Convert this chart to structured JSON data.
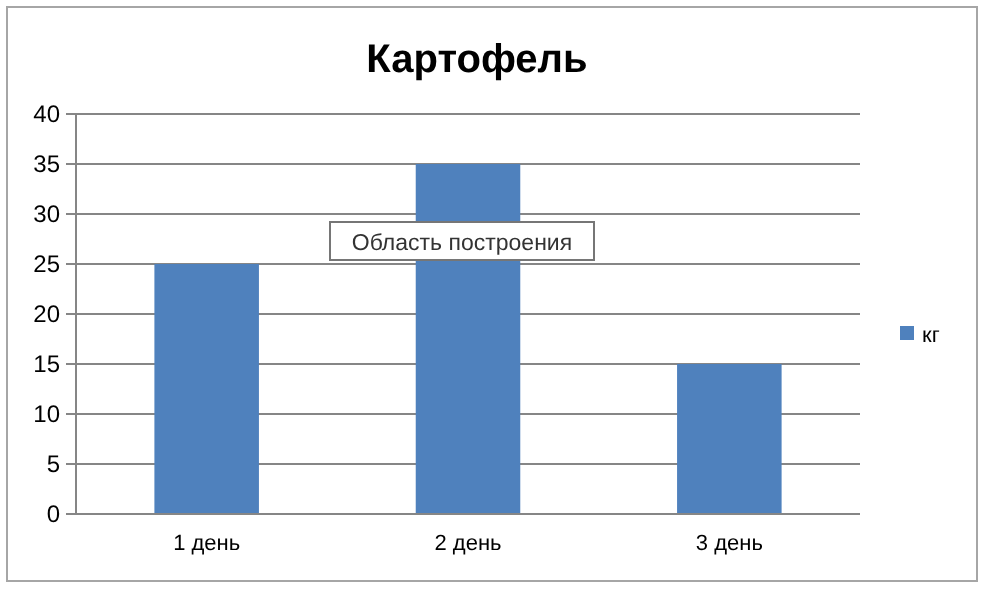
{
  "chart_data": {
    "type": "bar",
    "title": "Картофель",
    "categories": [
      "1 день",
      "2 день",
      "3 день"
    ],
    "series": [
      {
        "name": "кг",
        "color": "#4f81bd",
        "values": [
          25,
          35,
          15
        ]
      }
    ],
    "ylim": [
      0,
      40
    ],
    "yticks": [
      0,
      5,
      10,
      15,
      20,
      25,
      30,
      35,
      40
    ],
    "grid": "y",
    "legend": "right",
    "annotations": [
      "Область построения"
    ]
  }
}
